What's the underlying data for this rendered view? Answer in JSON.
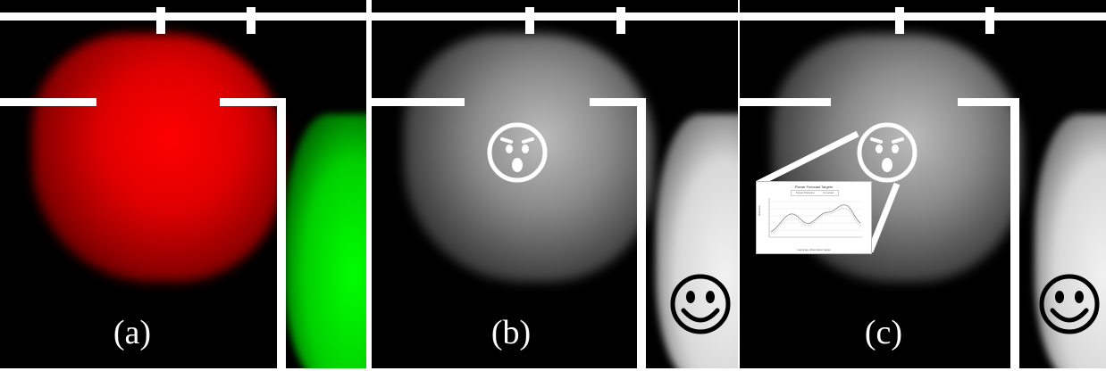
{
  "panels": [
    {
      "id": "a",
      "label": "(a)",
      "mode": "color",
      "heat_high": "#ff0000",
      "heat_low": "#00ff00"
    },
    {
      "id": "b",
      "label": "(b)",
      "mode": "grayscale",
      "face_high": "surprised-face-icon",
      "face_low": "smiley-face-icon"
    },
    {
      "id": "c",
      "label": "(c)",
      "mode": "grayscale",
      "face_high": "surprised-face-icon",
      "face_low": "smiley-face-icon",
      "has_chart_inset": true
    }
  ],
  "inset_chart": {
    "title": "Planar Forecast Targets",
    "legend": [
      "Target Distance",
      "Forecast"
    ],
    "xlabel": "Lagrange observation target",
    "ylabel": "Distance"
  },
  "colors": {
    "background": "#000000",
    "walls": "#ffffff",
    "red_heat": "#ff0000",
    "green_heat": "#00ff00"
  }
}
